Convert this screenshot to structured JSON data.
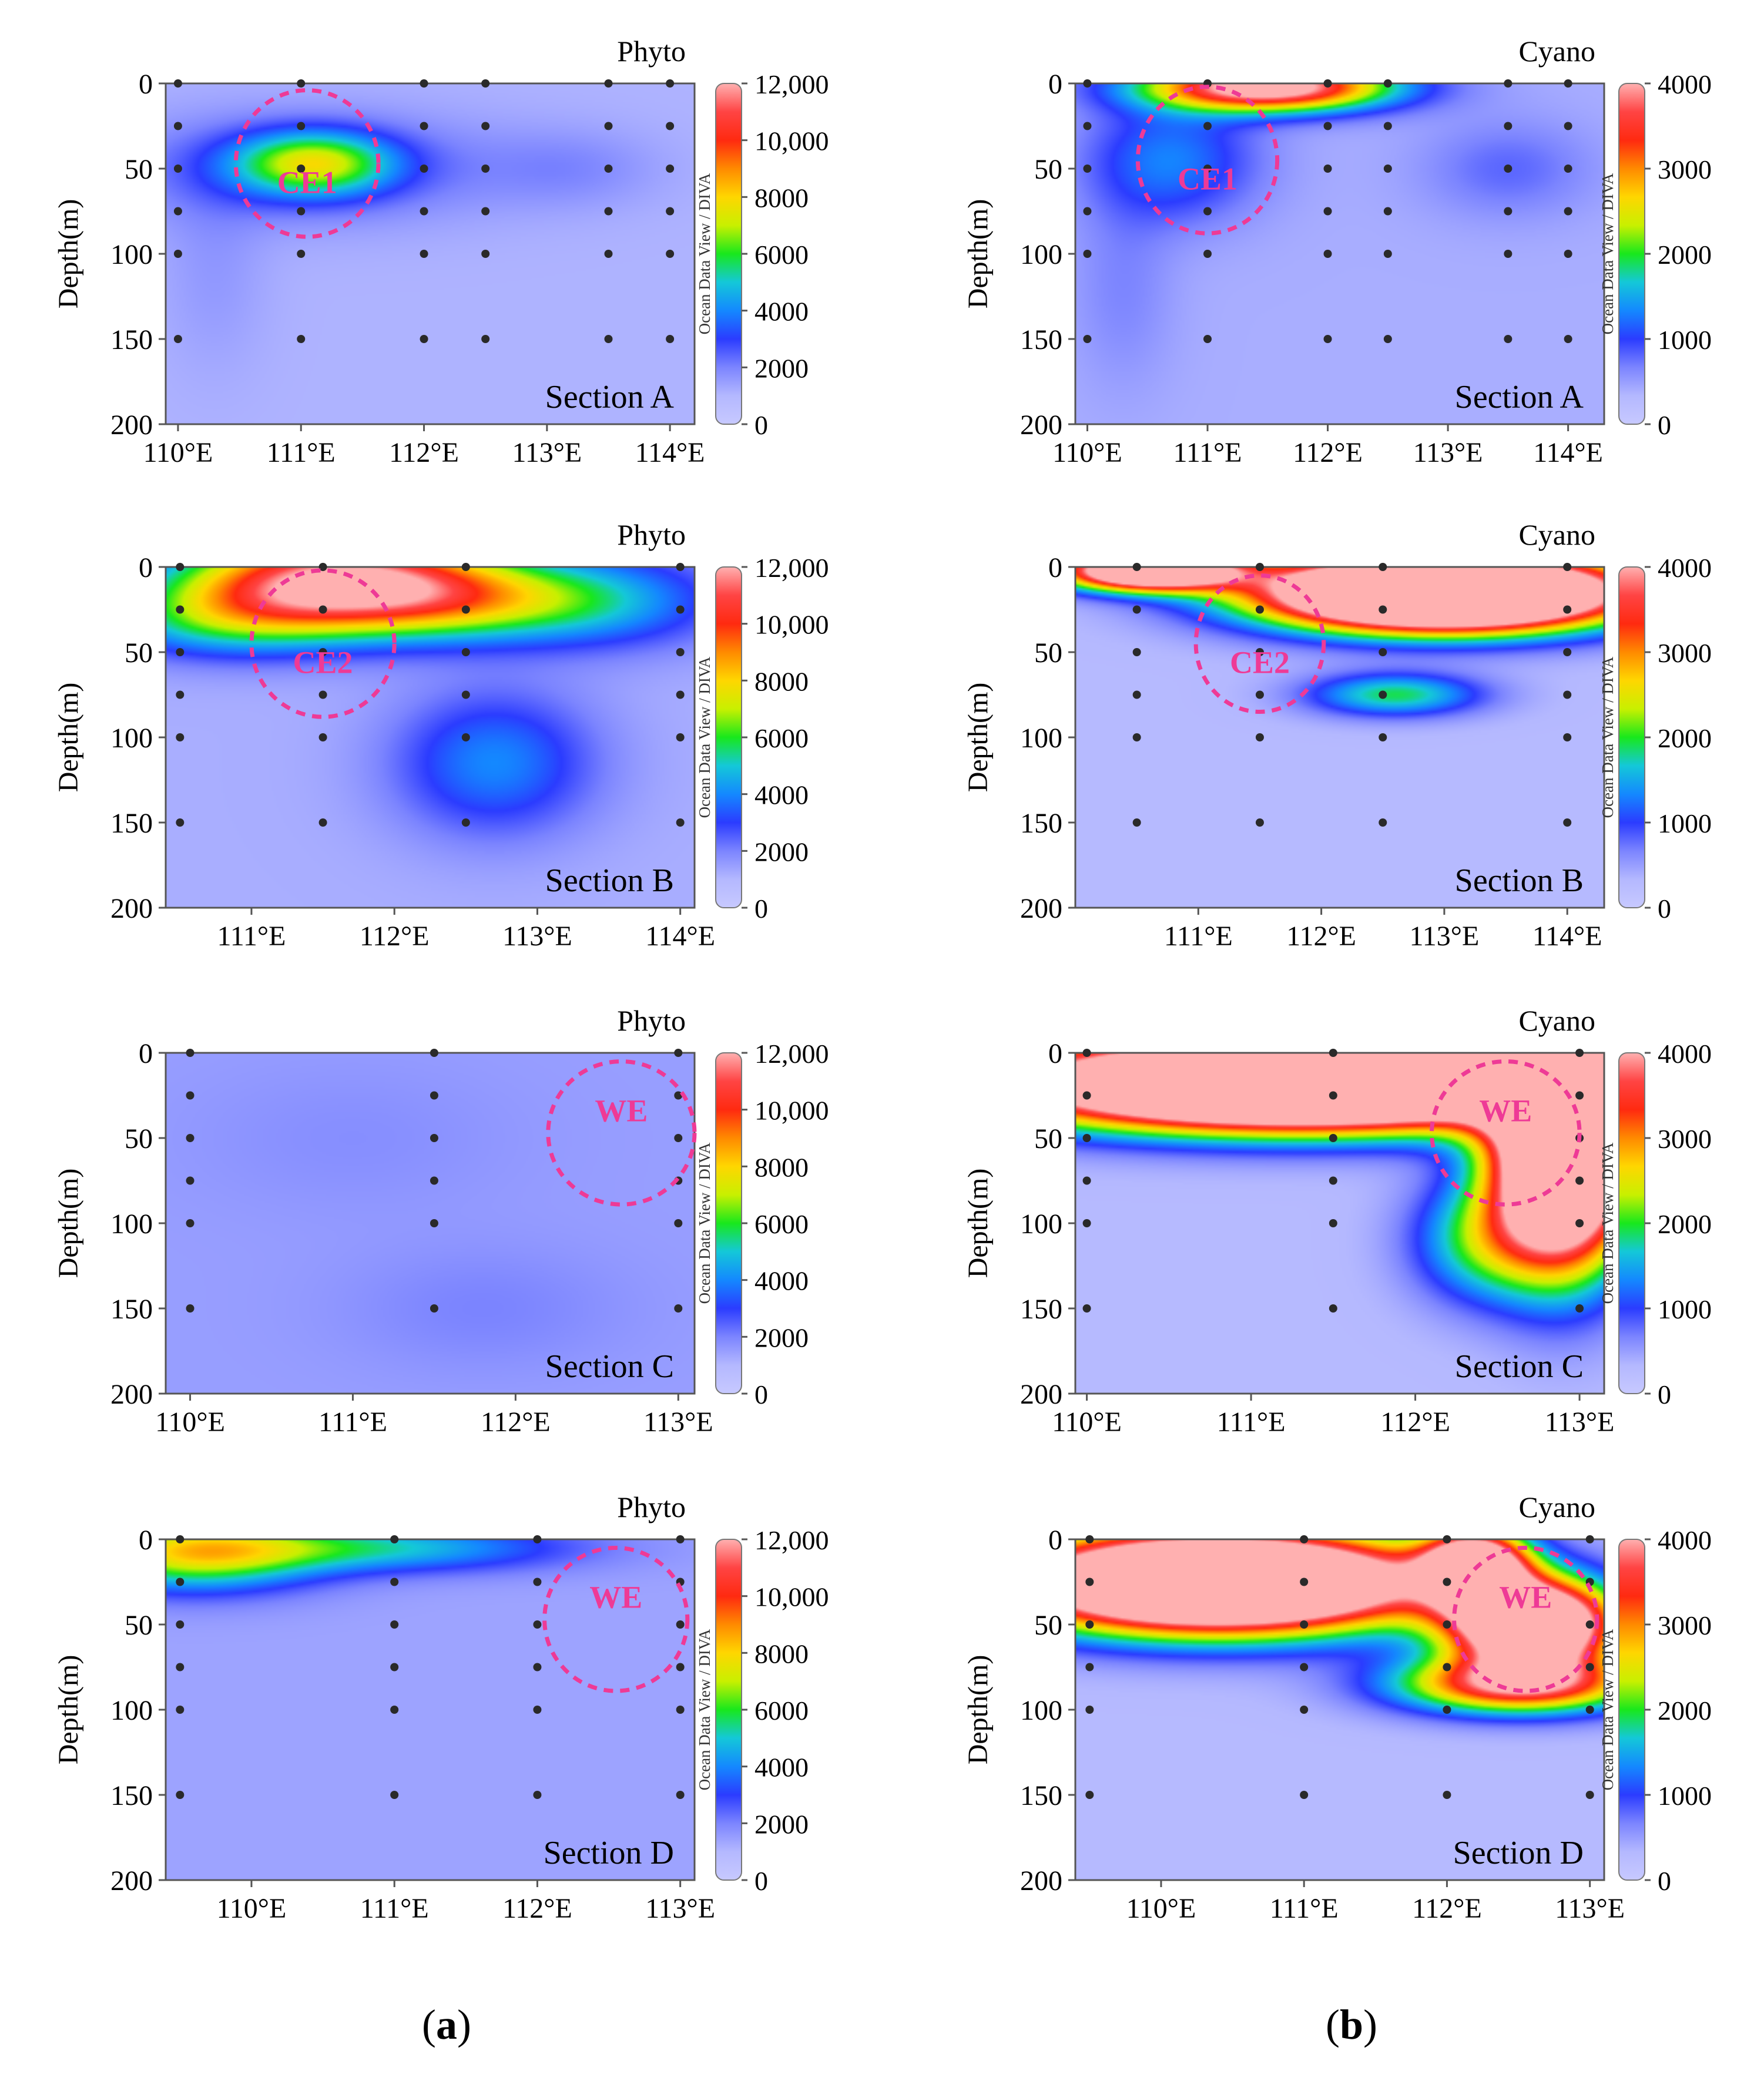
{
  "captions": {
    "a": "a",
    "b": "b"
  },
  "colors": {
    "stops": [
      "#c7c9ff",
      "#b4b8ff",
      "#7b84ff",
      "#2b3cff",
      "#1488ff",
      "#14c8d8",
      "#18e81c",
      "#c8f000",
      "#ffd600",
      "#ff8a00",
      "#ff2a10",
      "#ff4444",
      "#ffb0b0"
    ],
    "eddy": "#ee3a96",
    "station": "#2a2a2a"
  },
  "chart_data": [
    {
      "id": "phyto-A",
      "type": "heatmap",
      "title": "Phyto",
      "section": "Section A",
      "ylabel": "Depth(m)",
      "yticks": [
        "0",
        "50",
        "100",
        "150",
        "200"
      ],
      "ylim": [
        0,
        200
      ],
      "xlim": [
        109.9,
        114.2
      ],
      "xticks": [
        {
          "v": 110,
          "label": "110°E"
        },
        {
          "v": 111,
          "label": "111°E"
        },
        {
          "v": 112,
          "label": "112°E"
        },
        {
          "v": 113,
          "label": "113°E"
        },
        {
          "v": 114,
          "label": "114°E"
        }
      ],
      "colorbar": {
        "max": 12000,
        "ticks": [
          "12,000",
          "10,000",
          "8000",
          "6000",
          "4000",
          "2000",
          "0"
        ],
        "label": "Ocean Data View / DIVA"
      },
      "stations": [
        110,
        111,
        112,
        112.5,
        113.5,
        114
      ],
      "depths": [
        0,
        25,
        50,
        75,
        100,
        150
      ],
      "eddy": {
        "label": "CE1",
        "lon": 111.05,
        "depth": 47,
        "r_lon": 0.58,
        "r_depth": 43
      },
      "base": 1100,
      "blobs": [
        {
          "lon": 111.1,
          "depth": 47,
          "slon": 0.45,
          "sdep": 13,
          "amp": 5200
        },
        {
          "lon": 111.0,
          "depth": 50,
          "slon": 1.1,
          "sdep": 22,
          "amp": 1600
        },
        {
          "lon": 113.2,
          "depth": 50,
          "slon": 0.5,
          "sdep": 16,
          "amp": 700
        },
        {
          "lon": 110.3,
          "depth": 110,
          "slon": 0.3,
          "sdep": 40,
          "amp": 500
        }
      ]
    },
    {
      "id": "cyano-A",
      "type": "heatmap",
      "title": "Cyano",
      "section": "Section A",
      "ylabel": "Depth(m)",
      "yticks": [
        "0",
        "50",
        "100",
        "150",
        "200"
      ],
      "ylim": [
        0,
        200
      ],
      "xlim": [
        109.9,
        114.3
      ],
      "xticks": [
        {
          "v": 110,
          "label": "110°E"
        },
        {
          "v": 111,
          "label": "111°E"
        },
        {
          "v": 112,
          "label": "112°E"
        },
        {
          "v": 113,
          "label": "113°E"
        },
        {
          "v": 114,
          "label": "114°E"
        }
      ],
      "colorbar": {
        "max": 4000,
        "ticks": [
          "4000",
          "3000",
          "2000",
          "1000",
          "0"
        ],
        "label": "Ocean Data View / DIVA"
      },
      "stations": [
        110,
        111,
        112,
        112.5,
        113.5,
        114
      ],
      "depths": [
        0,
        25,
        50,
        75,
        100,
        150
      ],
      "eddy": {
        "label": "CE1",
        "lon": 111.0,
        "depth": 45,
        "r_lon": 0.58,
        "r_depth": 43
      },
      "base": 400,
      "blobs": [
        {
          "lon": 111.5,
          "depth": 2,
          "slon": 0.7,
          "sdep": 10,
          "amp": 4200
        },
        {
          "lon": 110.7,
          "depth": 45,
          "slon": 0.5,
          "sdep": 25,
          "amp": 900
        },
        {
          "lon": 113.5,
          "depth": 50,
          "slon": 0.5,
          "sdep": 20,
          "amp": 400
        },
        {
          "lon": 110.3,
          "depth": 120,
          "slon": 0.3,
          "sdep": 40,
          "amp": 250
        }
      ]
    },
    {
      "id": "phyto-B",
      "type": "heatmap",
      "title": "Phyto",
      "section": "Section B",
      "ylabel": "Depth(m)",
      "yticks": [
        "0",
        "50",
        "100",
        "150",
        "200"
      ],
      "ylim": [
        0,
        200
      ],
      "xlim": [
        110.4,
        114.1
      ],
      "xticks": [
        {
          "v": 111,
          "label": "111°E"
        },
        {
          "v": 112,
          "label": "112°E"
        },
        {
          "v": 113,
          "label": "113°E"
        },
        {
          "v": 114,
          "label": "114°E"
        }
      ],
      "colorbar": {
        "max": 12000,
        "ticks": [
          "12,000",
          "10,000",
          "8000",
          "6000",
          "4000",
          "2000",
          "0"
        ],
        "label": "Ocean Data View / DIVA"
      },
      "stations": [
        110.5,
        111.5,
        112.5,
        114
      ],
      "depths": [
        0,
        25,
        50,
        75,
        100,
        150
      ],
      "eddy": {
        "label": "CE2",
        "lon": 111.5,
        "depth": 45,
        "r_lon": 0.5,
        "r_depth": 43
      },
      "base": 1200,
      "blobs": [
        {
          "lon": 111.6,
          "depth": 8,
          "slon": 0.75,
          "sdep": 20,
          "amp": 10500
        },
        {
          "lon": 112.5,
          "depth": 20,
          "slon": 0.7,
          "sdep": 16,
          "amp": 4000
        },
        {
          "lon": 110.8,
          "depth": 30,
          "slon": 0.6,
          "sdep": 16,
          "amp": 3500
        },
        {
          "lon": 112.7,
          "depth": 115,
          "slon": 0.5,
          "sdep": 30,
          "amp": 2800
        },
        {
          "lon": 113.5,
          "depth": 20,
          "slon": 0.6,
          "sdep": 20,
          "amp": 2500
        }
      ]
    },
    {
      "id": "cyano-B",
      "type": "heatmap",
      "title": "Cyano",
      "section": "Section B",
      "ylabel": "Depth(m)",
      "yticks": [
        "0",
        "50",
        "100",
        "150",
        "200"
      ],
      "ylim": [
        0,
        200
      ],
      "xlim": [
        110.0,
        114.3
      ],
      "xticks": [
        {
          "v": 111,
          "label": "111°E"
        },
        {
          "v": 112,
          "label": "112°E"
        },
        {
          "v": 113,
          "label": "113°E"
        },
        {
          "v": 114,
          "label": "114°E"
        }
      ],
      "colorbar": {
        "max": 4000,
        "ticks": [
          "4000",
          "3000",
          "2000",
          "1000",
          "0"
        ],
        "label": "Ocean Data View / DIVA"
      },
      "stations": [
        110.5,
        111.5,
        112.5,
        114
      ],
      "depths": [
        0,
        25,
        50,
        75,
        100,
        150
      ],
      "eddy": {
        "label": "CE2",
        "lon": 111.5,
        "depth": 45,
        "r_lon": 0.52,
        "r_depth": 40
      },
      "base": 300,
      "blobs": [
        {
          "lon": 113.0,
          "depth": 15,
          "slon": 1.0,
          "sdep": 15,
          "amp": 9000
        },
        {
          "lon": 110.6,
          "depth": 2,
          "slon": 0.5,
          "sdep": 8,
          "amp": 6000
        },
        {
          "lon": 112.6,
          "depth": 75,
          "slon": 0.5,
          "sdep": 9,
          "amp": 1600
        }
      ]
    },
    {
      "id": "phyto-C",
      "type": "heatmap",
      "title": "Phyto",
      "section": "Section C",
      "ylabel": "Depth(m)",
      "yticks": [
        "0",
        "50",
        "100",
        "150",
        "200"
      ],
      "ylim": [
        0,
        200
      ],
      "xlim": [
        109.85,
        113.1
      ],
      "xticks": [
        {
          "v": 110,
          "label": "110°E"
        },
        {
          "v": 111,
          "label": "111°E"
        },
        {
          "v": 112,
          "label": "112°E"
        },
        {
          "v": 113,
          "label": "113°E"
        }
      ],
      "colorbar": {
        "max": 12000,
        "ticks": [
          "12,000",
          "10,000",
          "8000",
          "6000",
          "4000",
          "2000",
          "0"
        ],
        "label": "Ocean Data View / DIVA"
      },
      "stations": [
        110,
        111.5,
        113
      ],
      "depths": [
        0,
        25,
        50,
        75,
        100,
        150
      ],
      "eddy": {
        "label": "WE",
        "lon": 112.65,
        "depth": 47,
        "r_lon": 0.45,
        "r_depth": 42
      },
      "base": 1500,
      "blobs": [
        {
          "lon": 111.8,
          "depth": 150,
          "slon": 0.6,
          "sdep": 25,
          "amp": 500
        },
        {
          "lon": 111.0,
          "depth": 50,
          "slon": 0.7,
          "sdep": 30,
          "amp": 300
        }
      ]
    },
    {
      "id": "cyano-C",
      "type": "heatmap",
      "title": "Cyano",
      "section": "Section C",
      "ylabel": "Depth(m)",
      "yticks": [
        "0",
        "50",
        "100",
        "150",
        "200"
      ],
      "ylim": [
        0,
        200
      ],
      "xlim": [
        109.93,
        113.15
      ],
      "xticks": [
        {
          "v": 110,
          "label": "110°E"
        },
        {
          "v": 111,
          "label": "111°E"
        },
        {
          "v": 112,
          "label": "112°E"
        },
        {
          "v": 113,
          "label": "113°E"
        }
      ],
      "colorbar": {
        "max": 4000,
        "ticks": [
          "4000",
          "3000",
          "2000",
          "1000",
          "0"
        ],
        "label": "Ocean Data View / DIVA"
      },
      "stations": [
        110,
        111.5,
        113
      ],
      "depths": [
        0,
        25,
        50,
        75,
        100,
        150
      ],
      "eddy": {
        "label": "WE",
        "lon": 112.55,
        "depth": 47,
        "r_lon": 0.45,
        "r_depth": 42
      },
      "base": 300,
      "blobs": [
        {
          "lon": 111.3,
          "depth": 18,
          "slon": 1.2,
          "sdep": 18,
          "amp": 9000
        },
        {
          "lon": 112.9,
          "depth": 60,
          "slon": 0.3,
          "sdep": 45,
          "amp": 7000
        },
        {
          "lon": 112.4,
          "depth": 110,
          "slon": 0.3,
          "sdep": 25,
          "amp": 1500
        }
      ]
    },
    {
      "id": "phyto-D",
      "type": "heatmap",
      "title": "Phyto",
      "section": "Section D",
      "ylabel": "Depth(m)",
      "yticks": [
        "0",
        "50",
        "100",
        "150",
        "200"
      ],
      "ylim": [
        0,
        200
      ],
      "xlim": [
        109.4,
        113.1
      ],
      "xticks": [
        {
          "v": 110,
          "label": "110°E"
        },
        {
          "v": 111,
          "label": "111°E"
        },
        {
          "v": 112,
          "label": "112°E"
        },
        {
          "v": 113,
          "label": "113°E"
        }
      ],
      "colorbar": {
        "max": 12000,
        "ticks": [
          "12,000",
          "10,000",
          "8000",
          "6000",
          "4000",
          "2000",
          "0"
        ],
        "label": "Ocean Data View / DIVA"
      },
      "stations": [
        109.5,
        111,
        112,
        113
      ],
      "depths": [
        0,
        25,
        50,
        75,
        100,
        150
      ],
      "eddy": {
        "label": "WE",
        "lon": 112.55,
        "depth": 47,
        "r_lon": 0.5,
        "r_depth": 42
      },
      "base": 1400,
      "blobs": [
        {
          "lon": 109.6,
          "depth": 8,
          "slon": 0.6,
          "sdep": 15,
          "amp": 6000
        },
        {
          "lon": 110.9,
          "depth": 5,
          "slon": 0.9,
          "sdep": 10,
          "amp": 3500
        }
      ]
    },
    {
      "id": "cyano-D",
      "type": "heatmap",
      "title": "Cyano",
      "section": "Section D",
      "ylabel": "Depth(m)",
      "yticks": [
        "0",
        "50",
        "100",
        "150",
        "200"
      ],
      "ylim": [
        0,
        200
      ],
      "xlim": [
        109.4,
        113.1
      ],
      "xticks": [
        {
          "v": 110,
          "label": "110°E"
        },
        {
          "v": 111,
          "label": "111°E"
        },
        {
          "v": 112,
          "label": "112°E"
        },
        {
          "v": 113,
          "label": "113°E"
        }
      ],
      "colorbar": {
        "max": 4000,
        "ticks": [
          "4000",
          "3000",
          "2000",
          "1000",
          "0"
        ],
        "label": "Ocean Data View / DIVA"
      },
      "stations": [
        109.5,
        111,
        112,
        113
      ],
      "depths": [
        0,
        25,
        50,
        75,
        100,
        150
      ],
      "eddy": {
        "label": "WE",
        "lon": 112.55,
        "depth": 47,
        "r_lon": 0.5,
        "r_depth": 42
      },
      "base": 300,
      "blobs": [
        {
          "lon": 110.4,
          "depth": 25,
          "slon": 1.0,
          "sdep": 20,
          "amp": 8000
        },
        {
          "lon": 112.6,
          "depth": 50,
          "slon": 0.4,
          "sdep": 18,
          "amp": 6000
        },
        {
          "lon": 112.2,
          "depth": 15,
          "slon": 0.25,
          "sdep": 15,
          "amp": 4500
        },
        {
          "lon": 112.5,
          "depth": 85,
          "slon": 0.6,
          "sdep": 12,
          "amp": 3500
        }
      ]
    }
  ]
}
